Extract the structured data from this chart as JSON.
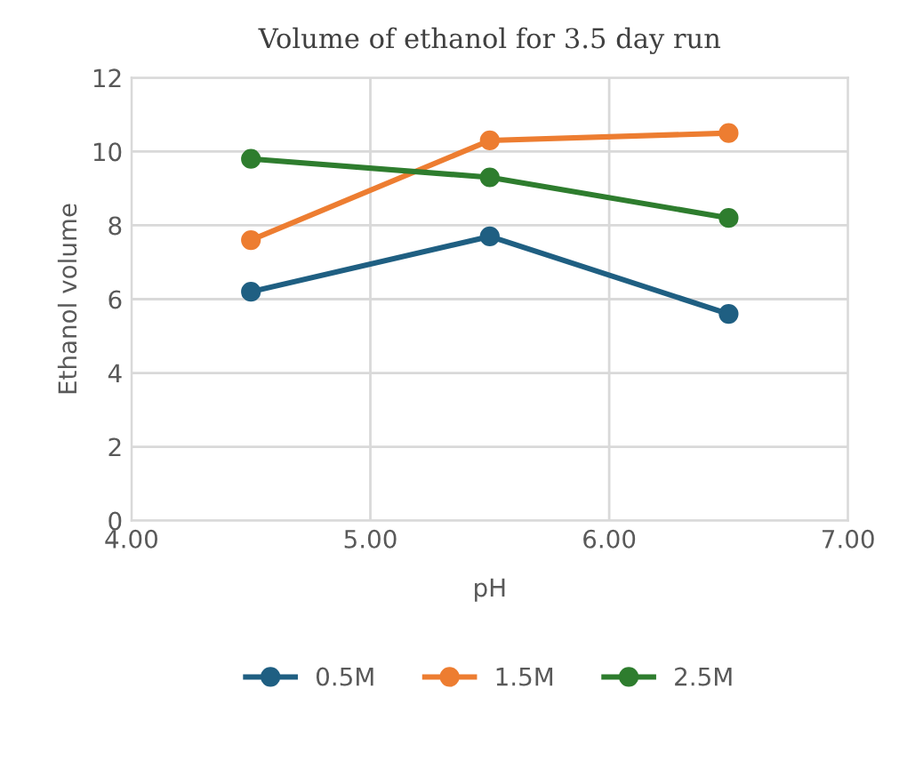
{
  "chart_data": {
    "type": "line",
    "title": "Volume of ethanol for 3.5 day run",
    "xlabel": "pH",
    "ylabel": "Ethanol volume",
    "x": [
      4.5,
      5.5,
      6.5
    ],
    "series": [
      {
        "name": "0.5M",
        "color": "#1f5f82",
        "values": [
          6.2,
          7.7,
          5.6
        ]
      },
      {
        "name": "1.5M",
        "color": "#ed7d31",
        "values": [
          7.6,
          10.3,
          10.5
        ]
      },
      {
        "name": "2.5M",
        "color": "#2e7d2e",
        "values": [
          9.8,
          9.3,
          8.2
        ]
      }
    ],
    "xlim": [
      4,
      7
    ],
    "xticks": [
      {
        "value": 4,
        "label": "4.00"
      },
      {
        "value": 5,
        "label": "5.00"
      },
      {
        "value": 6,
        "label": "6.00"
      },
      {
        "value": 7,
        "label": "7.00"
      }
    ],
    "ylim": [
      0,
      12
    ],
    "yticks": [
      0,
      2,
      4,
      6,
      8,
      10,
      12
    ],
    "grid": true,
    "legend": "bottom",
    "marker": "circle",
    "line_style": "solid"
  }
}
